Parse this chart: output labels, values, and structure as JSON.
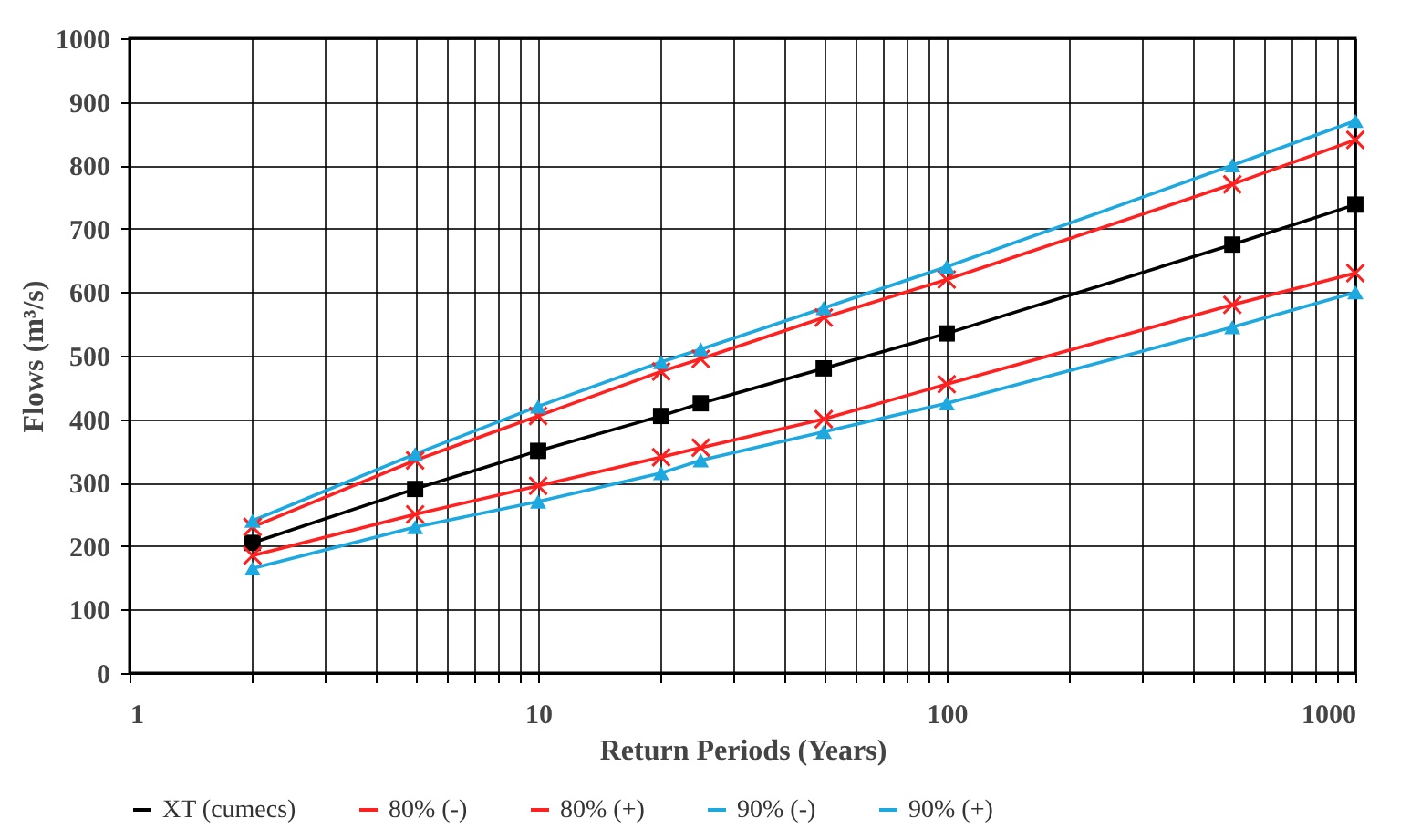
{
  "chart_data": {
    "type": "line",
    "xlabel": "Return Periods (Years)",
    "ylabel": "Flows (m³/s)",
    "log": "x",
    "grid": true,
    "legend": "bottom",
    "xlim": [
      1,
      1000
    ],
    "ylim": [
      0,
      1000
    ],
    "xticks": [
      1,
      {
        "value": 2,
        "label": null
      },
      {
        "value": 3,
        "label": null
      },
      {
        "value": 4,
        "label": null
      },
      {
        "value": 5,
        "label": null
      },
      {
        "value": 6,
        "label": null
      },
      {
        "value": 7,
        "label": null
      },
      {
        "value": 8,
        "label": null
      },
      {
        "value": 9,
        "label": null
      },
      10,
      {
        "value": 20,
        "label": null
      },
      {
        "value": 30,
        "label": null
      },
      {
        "value": 40,
        "label": null
      },
      {
        "value": 50,
        "label": null
      },
      {
        "value": 60,
        "label": null
      },
      {
        "value": 70,
        "label": null
      },
      {
        "value": 80,
        "label": null
      },
      {
        "value": 90,
        "label": null
      },
      100,
      {
        "value": 200,
        "label": null
      },
      {
        "value": 300,
        "label": null
      },
      {
        "value": 400,
        "label": null
      },
      {
        "value": 500,
        "label": null
      },
      {
        "value": 600,
        "label": null
      },
      {
        "value": 700,
        "label": null
      },
      {
        "value": 800,
        "label": null
      },
      {
        "value": 900,
        "label": null
      },
      1000
    ],
    "yticks": [
      0,
      100,
      200,
      300,
      400,
      500,
      600,
      700,
      800,
      900,
      1000
    ],
    "x": [
      2,
      5,
      10,
      20,
      25,
      50,
      100,
      500,
      1000
    ],
    "series": [
      {
        "name": "XT (cumecs)",
        "color": "#000000",
        "marker": "square",
        "values": [
          205,
          290,
          350,
          405,
          425,
          480,
          535,
          675,
          738
        ]
      },
      {
        "name": "80% (-)",
        "color": "#ff2020",
        "marker": "cross",
        "values": [
          185,
          250,
          295,
          340,
          355,
          400,
          455,
          580,
          630
        ]
      },
      {
        "name": "80% (+)",
        "color": "#ff2020",
        "marker": "cross",
        "values": [
          230,
          335,
          405,
          475,
          495,
          560,
          620,
          770,
          840
        ]
      },
      {
        "name": "90% (-)",
        "color": "#1ea8e0",
        "marker": "triangle",
        "values": [
          165,
          230,
          270,
          315,
          335,
          380,
          425,
          545,
          600
        ]
      },
      {
        "name": "90% (+)",
        "color": "#1ea8e0",
        "marker": "triangle",
        "values": [
          240,
          345,
          420,
          490,
          510,
          575,
          640,
          800,
          870
        ]
      }
    ]
  }
}
